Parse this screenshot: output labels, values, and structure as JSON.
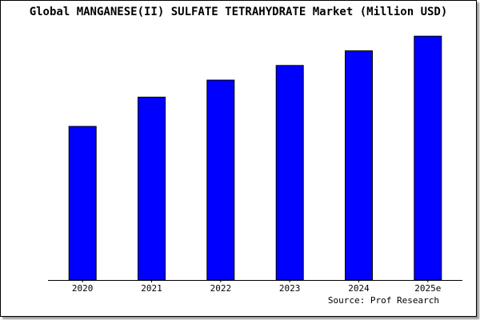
{
  "chart_data": {
    "type": "bar",
    "title": "Global MANGANESE(II) SULFATE TETRAHYDRATE Market (Million USD)",
    "categories": [
      "2020",
      "2021",
      "2022",
      "2023",
      "2024",
      "2025e"
    ],
    "values": [
      63,
      75,
      82,
      88,
      94,
      100
    ],
    "ylim": [
      0,
      105
    ],
    "xlabel": "",
    "ylabel": "",
    "grid": false,
    "legend": "none",
    "source": "Source: Prof Research",
    "colors": {
      "bar_fill": "#0000ff",
      "bar_stroke": "#000000",
      "plot_background": "#ffffff",
      "frame_shadow": "#9a9a9a"
    }
  }
}
